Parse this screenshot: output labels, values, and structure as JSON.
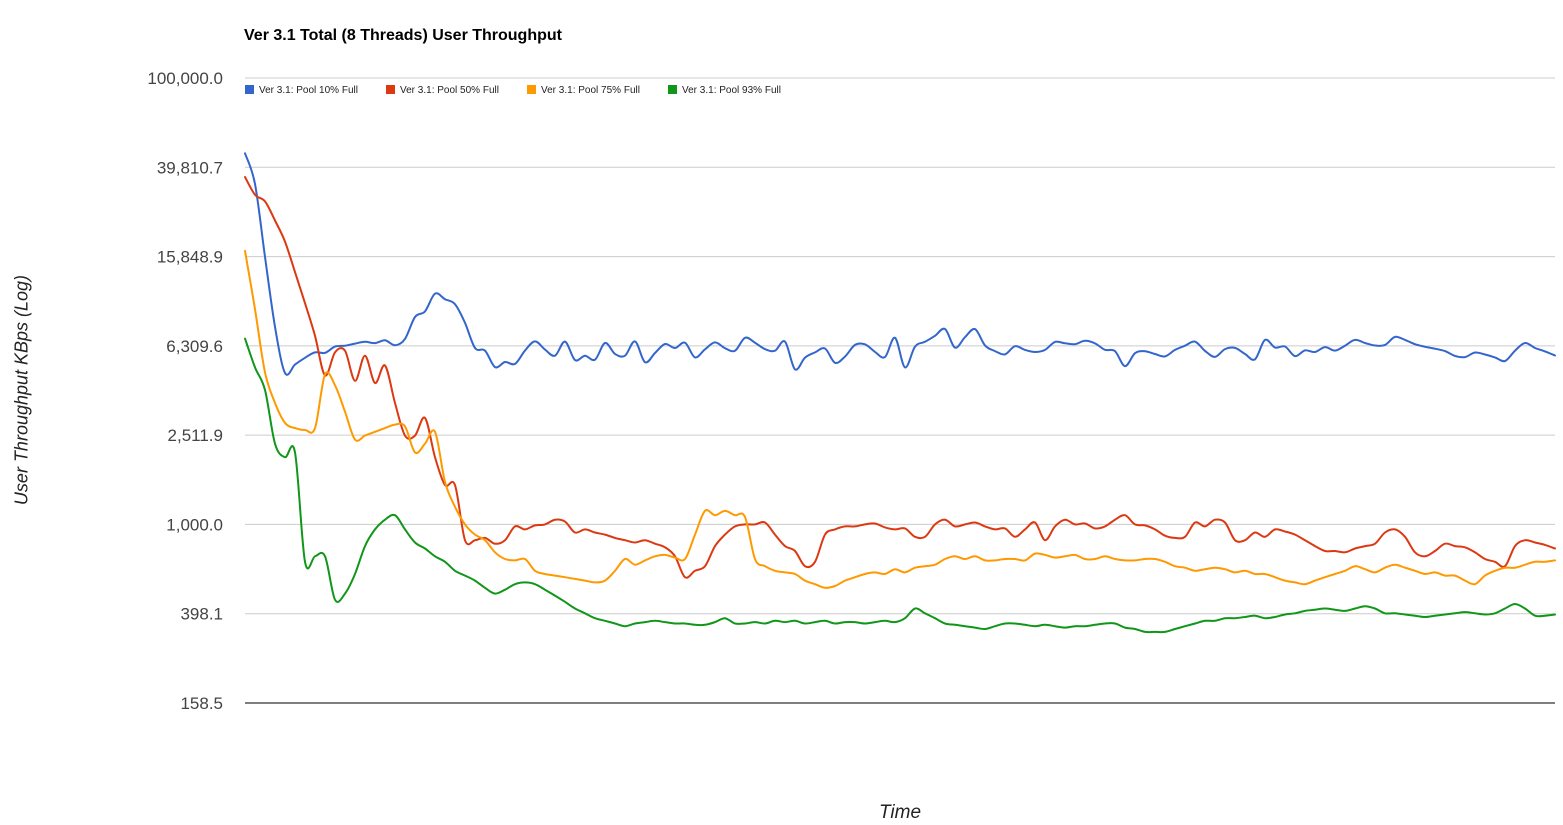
{
  "chart_data": {
    "type": "line",
    "title": "Ver 3.1 Total (8 Threads) User Throughput",
    "xlabel": "Time",
    "ylabel": "User Throughput KBps (Log)",
    "yscale": "log",
    "ylim": [
      158.5,
      100000.0
    ],
    "yticks": [
      "100,000.0",
      "39,810.7",
      "15,848.9",
      "6,309.6",
      "2,511.9",
      "1,000.0",
      "398.1",
      "158.5"
    ],
    "ytick_values": [
      100000,
      39810.7,
      15848.9,
      6309.6,
      2511.9,
      1000,
      398.1,
      158.5
    ],
    "grid": true,
    "legend_position": "top-left",
    "x": [
      0,
      10,
      20,
      30,
      40,
      50,
      60,
      70,
      80,
      90,
      100,
      110,
      120,
      130,
      140,
      150,
      160,
      170,
      180,
      190,
      200,
      210,
      220,
      230,
      240,
      250,
      260,
      270,
      280,
      290,
      300,
      310,
      320,
      330,
      340,
      350,
      360,
      370,
      380,
      390,
      400,
      410,
      420,
      430,
      440,
      450,
      460,
      470,
      480,
      490,
      500,
      510,
      520,
      530,
      540,
      550,
      560,
      570,
      580,
      590,
      600,
      610,
      620,
      630,
      640,
      650,
      660,
      670,
      680,
      690,
      700,
      710,
      720,
      730,
      740,
      750,
      760,
      770,
      780,
      790,
      800,
      810,
      820,
      830,
      840,
      850,
      860,
      870,
      880,
      890,
      900,
      910,
      920,
      930,
      940,
      950,
      960,
      970,
      980,
      990,
      1000,
      1010,
      1020,
      1030,
      1040,
      1050,
      1060,
      1070,
      1080,
      1090,
      1100,
      1110,
      1120,
      1130,
      1140,
      1150,
      1160,
      1170,
      1180,
      1190,
      1200,
      1210,
      1220,
      1230,
      1240,
      1250,
      1260,
      1270,
      1280,
      1290,
      1300,
      1310
    ],
    "series": [
      {
        "name": "Ver 3.1: Pool 10% Full",
        "color": "#3366cc",
        "values": [
          46000,
          33500,
          15800,
          7680,
          4770,
          5200,
          5580,
          5900,
          5870,
          6260,
          6320,
          6460,
          6580,
          6490,
          6680,
          6350,
          6780,
          8500,
          9000,
          10810,
          10210,
          9700,
          8000,
          6170,
          6010,
          5070,
          5340,
          5240,
          6010,
          6610,
          6070,
          5700,
          6590,
          5450,
          5700,
          5470,
          6500,
          5810,
          5700,
          6610,
          5330,
          5860,
          6430,
          6170,
          6520,
          5600,
          6090,
          6540,
          6160,
          6000,
          6860,
          6520,
          6100,
          6000,
          6590,
          4950,
          5590,
          5900,
          6140,
          5300,
          5650,
          6370,
          6410,
          5930,
          5620,
          6860,
          5050,
          6260,
          6580,
          7000,
          7510,
          6200,
          6900,
          7500,
          6340,
          5980,
          5780,
          6290,
          6050,
          5920,
          6050,
          6570,
          6480,
          6420,
          6650,
          6470,
          6060,
          5980,
          5120,
          5850,
          5970,
          5800,
          5660,
          6050,
          6320,
          6590,
          5990,
          5630,
          6100,
          6180,
          5800,
          5490,
          6710,
          6200,
          6270,
          5680,
          6020,
          5920,
          6230,
          6010,
          6320,
          6710,
          6500,
          6330,
          6370,
          6920,
          6710,
          6420,
          6250,
          6130,
          5980,
          5690,
          5620,
          5890,
          5770,
          5600,
          5400,
          6000,
          6500,
          6170,
          5960,
          5710
        ]
      },
      {
        "name": "Ver 3.1: Pool 50% Full",
        "color": "#dc3912",
        "values": [
          36000,
          30000,
          28000,
          23000,
          18500,
          13500,
          9800,
          7000,
          4650,
          5900,
          6000,
          4400,
          5700,
          4300,
          5150,
          3500,
          2500,
          2500,
          3000,
          2000,
          1500,
          1500,
          850,
          850,
          870,
          820,
          850,
          980,
          950,
          990,
          1000,
          1050,
          1030,
          920,
          950,
          920,
          900,
          870,
          850,
          830,
          850,
          820,
          790,
          720,
          580,
          620,
          650,
          800,
          900,
          980,
          1000,
          1000,
          1020,
          900,
          800,
          760,
          650,
          680,
          900,
          950,
          980,
          980,
          1000,
          1010,
          970,
          950,
          960,
          880,
          880,
          1000,
          1050,
          980,
          1000,
          1020,
          980,
          950,
          960,
          880,
          950,
          1020,
          850,
          980,
          1050,
          1000,
          1010,
          960,
          980,
          1050,
          1100,
          1000,
          990,
          950,
          890,
          870,
          880,
          1020,
          980,
          1050,
          1020,
          850,
          850,
          920,
          880,
          950,
          930,
          900,
          850,
          800,
          760,
          760,
          750,
          780,
          800,
          820,
          920,
          950,
          880,
          750,
          720,
          760,
          820,
          800,
          790,
          750,
          700,
          680,
          650,
          800,
          850,
          830,
          810,
          780
        ]
      },
      {
        "name": "Ver 3.1: Pool 75% Full",
        "color": "#ff9900",
        "values": [
          16800,
          9200,
          4800,
          3500,
          2850,
          2700,
          2650,
          2700,
          4700,
          4200,
          3200,
          2400,
          2500,
          2600,
          2700,
          2800,
          2750,
          2100,
          2300,
          2600,
          1550,
          1200,
          1000,
          900,
          850,
          750,
          700,
          690,
          700,
          620,
          600,
          590,
          580,
          570,
          560,
          550,
          560,
          620,
          700,
          660,
          690,
          720,
          730,
          710,
          700,
          900,
          1150,
          1100,
          1150,
          1100,
          1080,
          700,
          650,
          620,
          610,
          600,
          560,
          540,
          520,
          530,
          560,
          580,
          600,
          610,
          600,
          630,
          610,
          640,
          650,
          660,
          700,
          720,
          700,
          720,
          690,
          690,
          700,
          700,
          690,
          740,
          730,
          710,
          720,
          730,
          700,
          700,
          720,
          700,
          690,
          690,
          700,
          700,
          680,
          650,
          640,
          620,
          630,
          640,
          630,
          610,
          620,
          600,
          600,
          580,
          560,
          550,
          540,
          560,
          580,
          600,
          620,
          650,
          630,
          610,
          640,
          660,
          640,
          620,
          600,
          610,
          590,
          590,
          560,
          540,
          590,
          620,
          640,
          640,
          660,
          680,
          680,
          690
        ]
      },
      {
        "name": "Ver 3.1: Pool 93% Full",
        "color": "#109618",
        "values": [
          6800,
          5050,
          4000,
          2300,
          2000,
          2100,
          680,
          720,
          720,
          460,
          490,
          600,
          800,
          950,
          1050,
          1100,
          950,
          830,
          780,
          720,
          680,
          620,
          590,
          560,
          520,
          490,
          510,
          540,
          550,
          540,
          510,
          480,
          450,
          420,
          400,
          380,
          370,
          360,
          350,
          360,
          365,
          370,
          365,
          360,
          360,
          355,
          355,
          365,
          380,
          360,
          360,
          365,
          360,
          370,
          365,
          370,
          360,
          365,
          370,
          360,
          365,
          365,
          360,
          365,
          370,
          365,
          380,
          420,
          400,
          380,
          360,
          355,
          350,
          345,
          340,
          350,
          360,
          360,
          355,
          350,
          355,
          350,
          345,
          350,
          350,
          355,
          360,
          360,
          345,
          340,
          330,
          330,
          330,
          340,
          350,
          360,
          370,
          370,
          380,
          380,
          385,
          390,
          380,
          385,
          395,
          400,
          410,
          415,
          420,
          415,
          410,
          420,
          430,
          420,
          400,
          400,
          395,
          390,
          385,
          390,
          395,
          400,
          405,
          400,
          395,
          400,
          420,
          440,
          420,
          390,
          390,
          395
        ]
      }
    ]
  }
}
